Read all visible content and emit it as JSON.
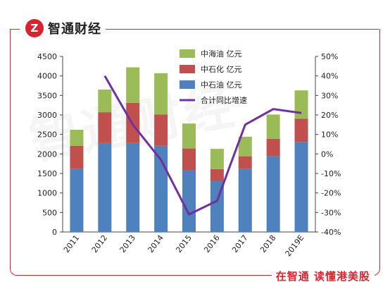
{
  "brand": {
    "logo_glyph": "Z",
    "name": "智通财经"
  },
  "watermark": "智通财经",
  "slogan": "在智通 读懂港美股",
  "colors": {
    "frame": "#d9232e",
    "cnooc": "#9bbb59",
    "sinopec": "#c0504d",
    "petrochina": "#4f81bd",
    "growth": "#7030a0"
  },
  "chart_data": {
    "type": "bar",
    "stacked": true,
    "categories": [
      "2011",
      "2012",
      "2013",
      "2014",
      "2015",
      "2016",
      "2017",
      "2018",
      "2019E"
    ],
    "series": [
      {
        "name": "中石油 亿元",
        "values": [
          1620,
          2280,
          2280,
          2210,
          1590,
          1310,
          1620,
          1950,
          2310
        ]
      },
      {
        "name": "中石化 亿元",
        "values": [
          590,
          790,
          1030,
          800,
          550,
          300,
          320,
          440,
          590
        ]
      },
      {
        "name": "中海油 亿元",
        "values": [
          410,
          580,
          910,
          1060,
          640,
          520,
          500,
          620,
          730
        ]
      }
    ],
    "line": {
      "name": "合计同比增速",
      "values": [
        null,
        40,
        15,
        -3,
        -31,
        -24,
        15,
        23,
        21
      ]
    },
    "ylim_left": [
      0,
      4500
    ],
    "yticks_left": [
      "0",
      "500",
      "1000",
      "1500",
      "2000",
      "2500",
      "3000",
      "3500",
      "4000",
      "4500"
    ],
    "ylim_right": [
      -40,
      50
    ],
    "yticks_right": [
      "-40%",
      "-30%",
      "-20%",
      "-10%",
      "0%",
      "10%",
      "20%",
      "30%",
      "40%",
      "50%"
    ],
    "legend_position": "top"
  }
}
